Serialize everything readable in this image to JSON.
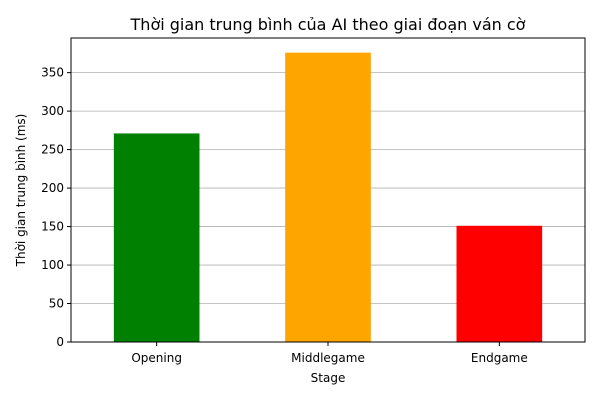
{
  "chart_data": {
    "type": "bar",
    "title": "Thời gian trung bình của AI theo giai đoạn ván cờ",
    "xlabel": "Stage",
    "ylabel": "Thời gian trung bình (ms)",
    "categories": [
      "Opening",
      "Middlegame",
      "Endgame"
    ],
    "values": [
      271,
      376,
      151
    ],
    "colors": [
      "#008000",
      "#FFA500",
      "#FF0000"
    ],
    "ylim": [
      0,
      395
    ],
    "yticks": [
      0,
      50,
      100,
      150,
      200,
      250,
      300,
      350
    ],
    "grid": "y-axis",
    "legend": "none"
  }
}
